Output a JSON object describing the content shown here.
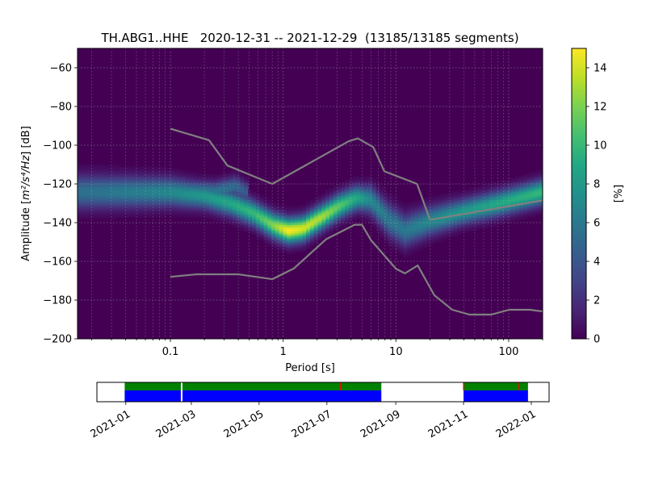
{
  "chart_data": [
    {
      "type": "heatmap",
      "title": "TH.ABG1..HHE   2020-12-31 -- 2021-12-29  (13185/13185 segments)",
      "xlabel": "Period [s]",
      "ylabel_main": "Amplitude [",
      "ylabel_math": "m²/s⁴/Hz",
      "ylabel_unit": "] [dB]",
      "x_scale": "log",
      "xlim": [
        0.015,
        200
      ],
      "ylim": [
        -200,
        -50
      ],
      "x_ticks": [
        {
          "value": 0.1,
          "label": "0.1"
        },
        {
          "value": 1,
          "label": "1"
        },
        {
          "value": 10,
          "label": "10"
        },
        {
          "value": 100,
          "label": "100"
        }
      ],
      "y_ticks": [
        {
          "value": -60,
          "label": "−60"
        },
        {
          "value": -80,
          "label": "−80"
        },
        {
          "value": -100,
          "label": "−100"
        },
        {
          "value": -120,
          "label": "−120"
        },
        {
          "value": -140,
          "label": "−140"
        },
        {
          "value": -160,
          "label": "−160"
        },
        {
          "value": -180,
          "label": "−180"
        },
        {
          "value": -200,
          "label": "−200"
        }
      ],
      "grid": true,
      "colormap": "viridis",
      "colorbar": {
        "label": "[%]",
        "range": [
          0,
          15
        ],
        "ticks": [
          {
            "value": 0,
            "label": "0"
          },
          {
            "value": 2,
            "label": "2"
          },
          {
            "value": 4,
            "label": "4"
          },
          {
            "value": 6,
            "label": "6"
          },
          {
            "value": 8,
            "label": "8"
          },
          {
            "value": 10,
            "label": "10"
          },
          {
            "value": 12,
            "label": "12"
          },
          {
            "value": 14,
            "label": "14"
          }
        ]
      },
      "mode_curve": [
        {
          "period": 0.015,
          "db": -124,
          "peak": 5.5
        },
        {
          "period": 0.03,
          "db": -124,
          "peak": 6
        },
        {
          "period": 0.06,
          "db": -124,
          "peak": 6.5
        },
        {
          "period": 0.1,
          "db": -124,
          "peak": 7
        },
        {
          "period": 0.2,
          "db": -126,
          "peak": 8
        },
        {
          "period": 0.35,
          "db": -130,
          "peak": 9
        },
        {
          "period": 0.55,
          "db": -135,
          "peak": 10
        },
        {
          "period": 0.8,
          "db": -141,
          "peak": 12
        },
        {
          "period": 1.1,
          "db": -144,
          "peak": 15
        },
        {
          "period": 1.5,
          "db": -143,
          "peak": 14
        },
        {
          "period": 2.2,
          "db": -137,
          "peak": 13
        },
        {
          "period": 3.2,
          "db": -131,
          "peak": 11
        },
        {
          "period": 4.5,
          "db": -127,
          "peak": 9
        },
        {
          "period": 6.0,
          "db": -128,
          "peak": 7
        },
        {
          "period": 8.5,
          "db": -138,
          "peak": 6
        },
        {
          "period": 12,
          "db": -144,
          "peak": 6
        },
        {
          "period": 20,
          "db": -139,
          "peak": 7
        },
        {
          "period": 40,
          "db": -134,
          "peak": 8
        },
        {
          "period": 80,
          "db": -130,
          "peak": 9
        },
        {
          "period": 200,
          "db": -124,
          "peak": 10
        }
      ],
      "secondary_band": [
        {
          "period": 0.12,
          "db": -123,
          "peak": 6
        },
        {
          "period": 0.25,
          "db": -124,
          "peak": 6
        },
        {
          "period": 0.38,
          "db": -121,
          "peak": 5
        },
        {
          "period": 0.5,
          "db": -125,
          "peak": 4
        }
      ],
      "noise_models": [
        {
          "name": "high-noise model",
          "points": [
            [
              0.1,
              -91.5
            ],
            [
              0.22,
              -97.4
            ],
            [
              0.32,
              -110.5
            ],
            [
              0.8,
              -120
            ],
            [
              3.8,
              -98
            ],
            [
              4.6,
              -96.5
            ],
            [
              6.3,
              -101
            ],
            [
              7.9,
              -113.5
            ],
            [
              15.4,
              -120
            ],
            [
              20,
              -138.5
            ],
            [
              354.8,
              -126
            ]
          ]
        },
        {
          "name": "low-noise model",
          "points": [
            [
              0.1,
              -168
            ],
            [
              0.17,
              -166.7
            ],
            [
              0.4,
              -166.7
            ],
            [
              0.8,
              -169.2
            ],
            [
              1.24,
              -163.7
            ],
            [
              2.4,
              -148.6
            ],
            [
              4.3,
              -141.1
            ],
            [
              5.0,
              -141.1
            ],
            [
              6.0,
              -149
            ],
            [
              10,
              -163.8
            ],
            [
              12,
              -166.2
            ],
            [
              15.6,
              -162.1
            ],
            [
              21.9,
              -177.5
            ],
            [
              31.6,
              -185
            ],
            [
              45,
              -187.5
            ],
            [
              70,
              -187.5
            ],
            [
              101,
              -185
            ],
            [
              154,
              -185
            ],
            [
              328,
              -187.5
            ]
          ]
        }
      ]
    },
    {
      "type": "timeline",
      "xlim": [
        "2020-12-06",
        "2022-01-17"
      ],
      "x_ticks": [
        "2021-01",
        "2021-03",
        "2021-05",
        "2021-07",
        "2021-09",
        "2021-11",
        "2022-01"
      ],
      "data_segments": [
        [
          "2020-12-31",
          "2021-02-20"
        ],
        [
          "2021-02-21",
          "2021-08-19"
        ],
        [
          "2021-11-01",
          "2021-12-29"
        ]
      ],
      "gap_markers": [
        "2021-02-21",
        "2021-07-13",
        "2021-11-01",
        "2021-12-20"
      ],
      "colors": {
        "psd": "#008000",
        "data": "#0000ff",
        "gap": "#ff0000",
        "gap_line": "#ffffff"
      }
    }
  ]
}
